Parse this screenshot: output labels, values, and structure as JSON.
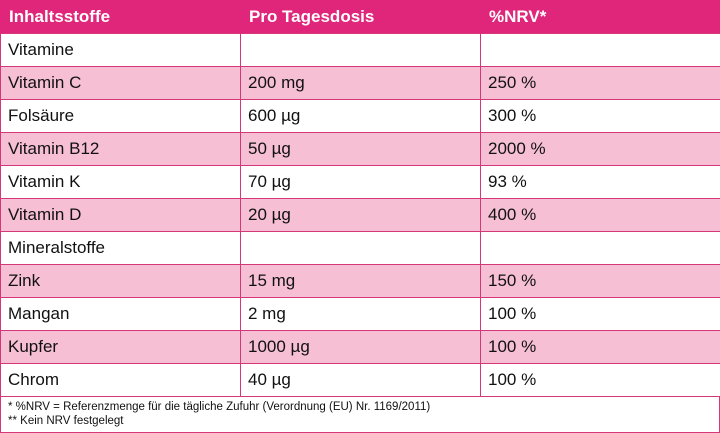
{
  "table": {
    "headers": [
      "Inhaltsstoffe",
      "Pro Tagesdosis",
      "%NRV*"
    ],
    "rows": [
      {
        "name": "Vitamine",
        "dose": "",
        "nrv": ""
      },
      {
        "name": "Vitamin C",
        "dose": "200 mg",
        "nrv": "250 %"
      },
      {
        "name": "Folsäure",
        "dose": "600 µg",
        "nrv": "300 %"
      },
      {
        "name": "Vitamin B12",
        "dose": "50 µg",
        "nrv": "2000 %"
      },
      {
        "name": "Vitamin K",
        "dose": "70 µg",
        "nrv": "93 %"
      },
      {
        "name": "Vitamin D",
        "dose": "20 µg",
        "nrv": "400 %"
      },
      {
        "name": "Mineralstoffe",
        "dose": "",
        "nrv": ""
      },
      {
        "name": "Zink",
        "dose": "15 mg",
        "nrv": "150 %"
      },
      {
        "name": "Mangan",
        "dose": "2 mg",
        "nrv": "100 %"
      },
      {
        "name": "Kupfer",
        "dose": "1000 µg",
        "nrv": "100 %"
      },
      {
        "name": "Chrom",
        "dose": "40 µg",
        "nrv": "100 %"
      }
    ]
  },
  "footnotes": [
    "* %NRV = Referenzmenge für die tägliche Zufuhr (Verordnung (EU) Nr. 1169/2011)",
    "** Kein NRV festgelegt"
  ],
  "colors": {
    "header": "#e0267a",
    "shaded_row": "#f6bfd4",
    "border": "#d43878"
  }
}
